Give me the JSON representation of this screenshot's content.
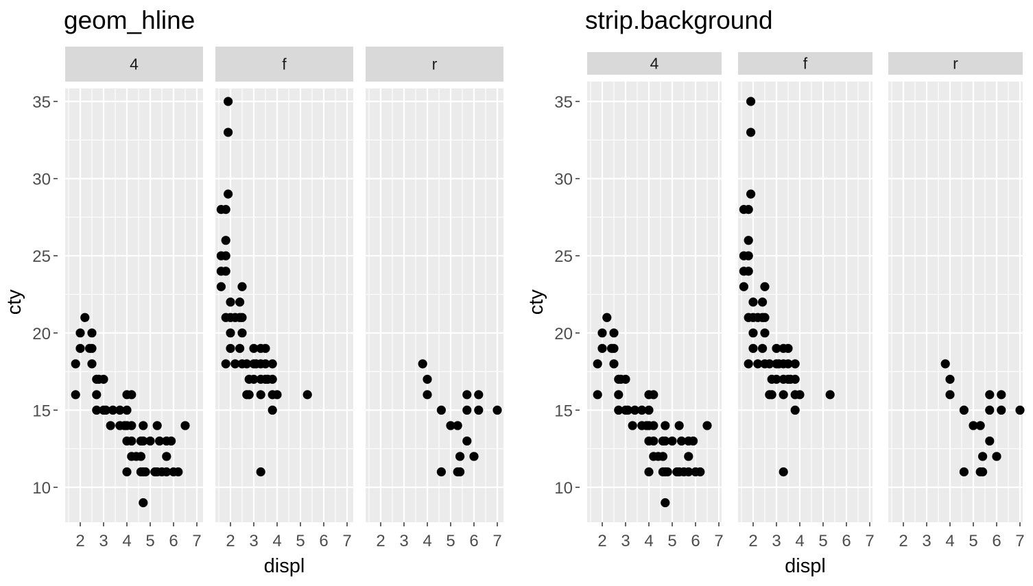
{
  "chart_data": [
    {
      "type": "scatter",
      "title": "geom_hline",
      "xlabel": "displ",
      "ylabel": "cty",
      "xlim": [
        1.6,
        7.0
      ],
      "ylim": [
        9,
        35
      ],
      "xticks": [
        2,
        3,
        4,
        5,
        6,
        7
      ],
      "yticks": [
        10,
        15,
        20,
        25,
        30,
        35
      ],
      "facets": [
        {
          "label": "4",
          "points": [
            [
              1.8,
              18
            ],
            [
              1.8,
              16
            ],
            [
              2.0,
              20
            ],
            [
              2.0,
              19
            ],
            [
              2.2,
              21
            ],
            [
              2.4,
              19
            ],
            [
              2.5,
              20
            ],
            [
              2.5,
              19
            ],
            [
              2.5,
              18
            ],
            [
              2.7,
              17
            ],
            [
              2.7,
              16
            ],
            [
              2.7,
              15
            ],
            [
              2.8,
              17
            ],
            [
              3.0,
              17
            ],
            [
              3.0,
              15
            ],
            [
              3.1,
              15
            ],
            [
              3.3,
              14
            ],
            [
              3.4,
              15
            ],
            [
              3.7,
              14
            ],
            [
              3.7,
              15
            ],
            [
              3.9,
              14
            ],
            [
              4.0,
              16
            ],
            [
              4.0,
              15
            ],
            [
              4.0,
              14
            ],
            [
              4.0,
              13
            ],
            [
              4.0,
              11
            ],
            [
              4.2,
              16
            ],
            [
              4.2,
              14
            ],
            [
              4.2,
              13
            ],
            [
              4.2,
              12
            ],
            [
              4.4,
              12
            ],
            [
              4.6,
              13
            ],
            [
              4.6,
              12
            ],
            [
              4.6,
              11
            ],
            [
              4.7,
              14
            ],
            [
              4.7,
              13
            ],
            [
              4.7,
              11
            ],
            [
              4.7,
              9
            ],
            [
              4.8,
              11
            ],
            [
              5.0,
              13
            ],
            [
              5.2,
              11
            ],
            [
              5.3,
              14
            ],
            [
              5.3,
              11
            ],
            [
              5.4,
              13
            ],
            [
              5.5,
              11
            ],
            [
              5.7,
              13
            ],
            [
              5.7,
              12
            ],
            [
              5.7,
              11
            ],
            [
              5.9,
              13
            ],
            [
              6.0,
              11
            ],
            [
              6.2,
              11
            ],
            [
              6.5,
              14
            ]
          ]
        },
        {
          "label": "f",
          "points": [
            [
              1.6,
              28
            ],
            [
              1.6,
              25
            ],
            [
              1.6,
              24
            ],
            [
              1.6,
              23
            ],
            [
              1.8,
              28
            ],
            [
              1.8,
              26
            ],
            [
              1.8,
              25
            ],
            [
              1.8,
              24
            ],
            [
              1.8,
              21
            ],
            [
              1.8,
              18
            ],
            [
              1.9,
              35
            ],
            [
              1.9,
              33
            ],
            [
              1.9,
              29
            ],
            [
              2.0,
              22
            ],
            [
              2.0,
              21
            ],
            [
              2.0,
              20
            ],
            [
              2.0,
              19
            ],
            [
              2.2,
              21
            ],
            [
              2.2,
              18
            ],
            [
              2.4,
              22
            ],
            [
              2.4,
              21
            ],
            [
              2.4,
              19
            ],
            [
              2.5,
              23
            ],
            [
              2.5,
              21
            ],
            [
              2.5,
              20
            ],
            [
              2.5,
              18
            ],
            [
              2.7,
              16
            ],
            [
              2.7,
              18
            ],
            [
              2.8,
              17
            ],
            [
              2.8,
              16
            ],
            [
              3.0,
              19
            ],
            [
              3.0,
              18
            ],
            [
              3.0,
              17
            ],
            [
              3.1,
              18
            ],
            [
              3.3,
              19
            ],
            [
              3.3,
              18
            ],
            [
              3.3,
              17
            ],
            [
              3.3,
              16
            ],
            [
              3.3,
              11
            ],
            [
              3.5,
              19
            ],
            [
              3.5,
              18
            ],
            [
              3.5,
              17
            ],
            [
              3.6,
              17
            ],
            [
              3.8,
              18
            ],
            [
              3.8,
              17
            ],
            [
              3.8,
              16
            ],
            [
              3.8,
              15
            ],
            [
              4.0,
              16
            ],
            [
              5.3,
              16
            ]
          ]
        },
        {
          "label": "r",
          "points": [
            [
              3.8,
              18
            ],
            [
              4.0,
              17
            ],
            [
              4.0,
              16
            ],
            [
              4.6,
              15
            ],
            [
              4.6,
              11
            ],
            [
              5.0,
              14
            ],
            [
              5.3,
              14
            ],
            [
              5.3,
              11
            ],
            [
              5.4,
              12
            ],
            [
              5.4,
              11
            ],
            [
              5.7,
              16
            ],
            [
              5.7,
              15
            ],
            [
              5.7,
              13
            ],
            [
              6.0,
              12
            ],
            [
              6.2,
              16
            ],
            [
              6.2,
              15
            ],
            [
              7.0,
              15
            ]
          ]
        }
      ]
    },
    {
      "type": "scatter",
      "title": "strip.background",
      "xlabel": "displ",
      "ylabel": "cty",
      "xlim": [
        1.6,
        7.0
      ],
      "ylim": [
        9,
        35
      ],
      "xticks": [
        2,
        3,
        4,
        5,
        6,
        7
      ],
      "yticks": [
        10,
        15,
        20,
        25,
        30,
        35
      ],
      "facets": [
        {
          "label": "4",
          "points": [
            [
              1.8,
              18
            ],
            [
              1.8,
              16
            ],
            [
              2.0,
              20
            ],
            [
              2.0,
              19
            ],
            [
              2.2,
              21
            ],
            [
              2.4,
              19
            ],
            [
              2.5,
              20
            ],
            [
              2.5,
              19
            ],
            [
              2.5,
              18
            ],
            [
              2.7,
              17
            ],
            [
              2.7,
              16
            ],
            [
              2.7,
              15
            ],
            [
              2.8,
              17
            ],
            [
              3.0,
              17
            ],
            [
              3.0,
              15
            ],
            [
              3.1,
              15
            ],
            [
              3.3,
              14
            ],
            [
              3.4,
              15
            ],
            [
              3.7,
              14
            ],
            [
              3.7,
              15
            ],
            [
              3.9,
              14
            ],
            [
              4.0,
              16
            ],
            [
              4.0,
              15
            ],
            [
              4.0,
              14
            ],
            [
              4.0,
              13
            ],
            [
              4.0,
              11
            ],
            [
              4.2,
              16
            ],
            [
              4.2,
              14
            ],
            [
              4.2,
              13
            ],
            [
              4.2,
              12
            ],
            [
              4.4,
              12
            ],
            [
              4.6,
              13
            ],
            [
              4.6,
              12
            ],
            [
              4.6,
              11
            ],
            [
              4.7,
              14
            ],
            [
              4.7,
              13
            ],
            [
              4.7,
              11
            ],
            [
              4.7,
              9
            ],
            [
              4.8,
              11
            ],
            [
              5.0,
              13
            ],
            [
              5.2,
              11
            ],
            [
              5.3,
              14
            ],
            [
              5.3,
              11
            ],
            [
              5.4,
              13
            ],
            [
              5.5,
              11
            ],
            [
              5.7,
              13
            ],
            [
              5.7,
              12
            ],
            [
              5.7,
              11
            ],
            [
              5.9,
              13
            ],
            [
              6.0,
              11
            ],
            [
              6.2,
              11
            ],
            [
              6.5,
              14
            ]
          ]
        },
        {
          "label": "f",
          "points": [
            [
              1.6,
              28
            ],
            [
              1.6,
              25
            ],
            [
              1.6,
              24
            ],
            [
              1.6,
              23
            ],
            [
              1.8,
              28
            ],
            [
              1.8,
              26
            ],
            [
              1.8,
              25
            ],
            [
              1.8,
              24
            ],
            [
              1.8,
              21
            ],
            [
              1.8,
              18
            ],
            [
              1.9,
              35
            ],
            [
              1.9,
              33
            ],
            [
              1.9,
              29
            ],
            [
              2.0,
              22
            ],
            [
              2.0,
              21
            ],
            [
              2.0,
              20
            ],
            [
              2.0,
              19
            ],
            [
              2.2,
              21
            ],
            [
              2.2,
              18
            ],
            [
              2.4,
              22
            ],
            [
              2.4,
              21
            ],
            [
              2.4,
              19
            ],
            [
              2.5,
              23
            ],
            [
              2.5,
              21
            ],
            [
              2.5,
              20
            ],
            [
              2.5,
              18
            ],
            [
              2.7,
              16
            ],
            [
              2.7,
              18
            ],
            [
              2.8,
              17
            ],
            [
              2.8,
              16
            ],
            [
              3.0,
              19
            ],
            [
              3.0,
              18
            ],
            [
              3.0,
              17
            ],
            [
              3.1,
              18
            ],
            [
              3.3,
              19
            ],
            [
              3.3,
              18
            ],
            [
              3.3,
              17
            ],
            [
              3.3,
              16
            ],
            [
              3.3,
              11
            ],
            [
              3.5,
              19
            ],
            [
              3.5,
              18
            ],
            [
              3.5,
              17
            ],
            [
              3.6,
              17
            ],
            [
              3.8,
              18
            ],
            [
              3.8,
              17
            ],
            [
              3.8,
              16
            ],
            [
              3.8,
              15
            ],
            [
              4.0,
              16
            ],
            [
              5.3,
              16
            ]
          ]
        },
        {
          "label": "r",
          "points": [
            [
              3.8,
              18
            ],
            [
              4.0,
              17
            ],
            [
              4.0,
              16
            ],
            [
              4.6,
              15
            ],
            [
              4.6,
              11
            ],
            [
              5.0,
              14
            ],
            [
              5.3,
              14
            ],
            [
              5.3,
              11
            ],
            [
              5.4,
              12
            ],
            [
              5.4,
              11
            ],
            [
              5.7,
              16
            ],
            [
              5.7,
              15
            ],
            [
              5.7,
              13
            ],
            [
              6.0,
              12
            ],
            [
              6.2,
              16
            ],
            [
              6.2,
              15
            ],
            [
              7.0,
              15
            ]
          ]
        }
      ]
    }
  ],
  "colors": {
    "panel_background": "#ebebeb",
    "grid_major": "#ffffff",
    "strip_background": "#d9d9d9",
    "point": "#000000",
    "tick_text": "#4d4d4d",
    "label_text": "#000000",
    "strip_text": "#1a1a1a"
  }
}
